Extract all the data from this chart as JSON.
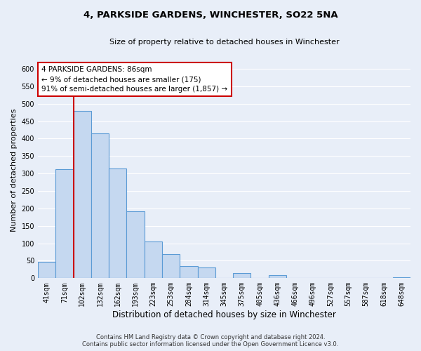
{
  "title": "4, PARKSIDE GARDENS, WINCHESTER, SO22 5NA",
  "subtitle": "Size of property relative to detached houses in Winchester",
  "xlabel": "Distribution of detached houses by size in Winchester",
  "ylabel": "Number of detached properties",
  "bar_labels": [
    "41sqm",
    "71sqm",
    "102sqm",
    "132sqm",
    "162sqm",
    "193sqm",
    "223sqm",
    "253sqm",
    "284sqm",
    "314sqm",
    "345sqm",
    "375sqm",
    "405sqm",
    "436sqm",
    "466sqm",
    "496sqm",
    "527sqm",
    "557sqm",
    "587sqm",
    "618sqm",
    "648sqm"
  ],
  "bar_values": [
    47,
    312,
    480,
    415,
    315,
    192,
    105,
    69,
    35,
    30,
    0,
    15,
    0,
    8,
    0,
    0,
    0,
    0,
    0,
    0,
    2
  ],
  "bar_color": "#c5d8f0",
  "bar_edge_color": "#5b9bd5",
  "vline_color": "#cc0000",
  "annotation_line1": "4 PARKSIDE GARDENS: 86sqm",
  "annotation_line2": "← 9% of detached houses are smaller (175)",
  "annotation_line3": "91% of semi-detached houses are larger (1,857) →",
  "annotation_box_color": "#ffffff",
  "annotation_box_edge": "#cc0000",
  "ylim": [
    0,
    620
  ],
  "yticks": [
    0,
    50,
    100,
    150,
    200,
    250,
    300,
    350,
    400,
    450,
    500,
    550,
    600
  ],
  "footer_line1": "Contains HM Land Registry data © Crown copyright and database right 2024.",
  "footer_line2": "Contains public sector information licensed under the Open Government Licence v3.0.",
  "bg_color": "#e8eef8",
  "grid_color": "#ffffff",
  "title_fontsize": 9.5,
  "subtitle_fontsize": 8,
  "ylabel_fontsize": 8,
  "xlabel_fontsize": 8.5,
  "tick_fontsize": 7,
  "annot_fontsize": 7.5,
  "footer_fontsize": 6
}
